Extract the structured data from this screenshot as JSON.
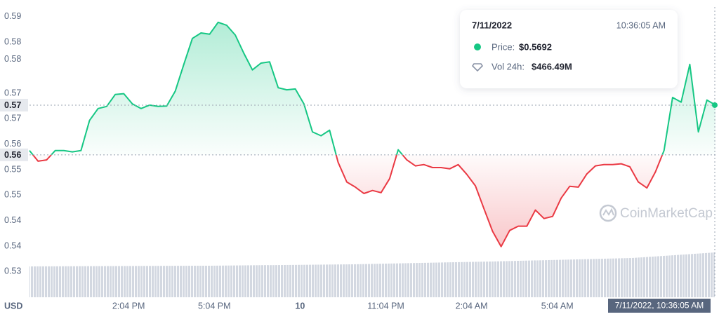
{
  "chart_data": {
    "type": "baseline-line",
    "currency": "USD",
    "watermark": "CoinMarketCap",
    "up_color": "#16c784",
    "down_color": "#ea3943",
    "grid": false,
    "xlim": [
      10.6,
      34.6
    ],
    "ylim": [
      0.5238,
      0.5923
    ],
    "xticks": [
      {
        "value": 14.0667,
        "label": "2:04 PM"
      },
      {
        "value": 17.0667,
        "label": "5:04 PM"
      },
      {
        "value": 20.0667,
        "label": "10"
      },
      {
        "value": 23.0667,
        "label": "11:04 PM"
      },
      {
        "value": 26.0667,
        "label": "2:04 AM"
      },
      {
        "value": 29.0667,
        "label": "5:04 AM"
      }
    ],
    "yticks": [
      0.59,
      {
        "value": 0.584,
        "label": "0.58"
      },
      0.58,
      {
        "value": 0.572,
        "label": "0.57"
      },
      {
        "value": 0.566,
        "label": "0.57"
      },
      0.56,
      {
        "value": 0.554,
        "label": "0.55"
      },
      {
        "value": 0.548,
        "label": "0.55"
      },
      {
        "value": 0.542,
        "label": "0.54"
      },
      {
        "value": 0.536,
        "label": "0.54"
      },
      0.53
    ],
    "baseline": {
      "value": 0.5575,
      "label": "0.56"
    },
    "last_price": {
      "value": 0.5692,
      "label": "0.57"
    },
    "crosshair_label": "7/11/2022, 10:36:05 AM",
    "x": [
      10.6,
      10.9,
      11.2,
      11.5,
      11.8,
      12.1,
      12.4,
      12.7,
      13.0,
      13.3,
      13.6,
      13.9,
      14.2,
      14.5,
      14.8,
      15.1,
      15.4,
      15.7,
      16.0,
      16.3,
      16.6,
      16.9,
      17.2,
      17.5,
      17.8,
      18.1,
      18.4,
      18.7,
      19.0,
      19.3,
      19.6,
      19.9,
      20.2,
      20.5,
      20.8,
      21.1,
      21.4,
      21.7,
      22.0,
      22.3,
      22.6,
      22.9,
      23.2,
      23.5,
      23.8,
      24.1,
      24.4,
      24.7,
      25.0,
      25.3,
      25.6,
      25.9,
      26.2,
      26.5,
      26.8,
      27.1,
      27.4,
      27.7,
      28.0,
      28.3,
      28.6,
      28.9,
      29.2,
      29.5,
      29.8,
      30.1,
      30.4,
      30.7,
      31.0,
      31.3,
      31.6,
      31.9,
      32.2,
      32.5,
      32.8,
      33.1,
      33.4,
      33.7,
      34.0,
      34.3,
      34.6
    ],
    "series": [
      {
        "name": "Price",
        "values": [
          0.5585,
          0.556,
          0.5563,
          0.5585,
          0.5585,
          0.5582,
          0.5585,
          0.5656,
          0.5684,
          0.5689,
          0.5717,
          0.5719,
          0.5695,
          0.5684,
          0.5692,
          0.5689,
          0.569,
          0.5725,
          0.5788,
          0.5849,
          0.5862,
          0.5859,
          0.5887,
          0.588,
          0.5857,
          0.5814,
          0.5775,
          0.5791,
          0.5794,
          0.5733,
          0.5728,
          0.573,
          0.5695,
          0.5629,
          0.562,
          0.5633,
          0.5557,
          0.5511,
          0.5499,
          0.5484,
          0.5491,
          0.5486,
          0.5519,
          0.5587,
          0.5563,
          0.5549,
          0.5552,
          0.5545,
          0.5545,
          0.5542,
          0.5552,
          0.5529,
          0.5502,
          0.5448,
          0.5395,
          0.5359,
          0.5397,
          0.5407,
          0.5407,
          0.5445,
          0.5425,
          0.543,
          0.5473,
          0.5501,
          0.5499,
          0.553,
          0.5549,
          0.5552,
          0.5552,
          0.5554,
          0.5547,
          0.5511,
          0.5497,
          0.5535,
          0.5585,
          0.571,
          0.5699,
          0.5788,
          0.5629,
          0.5704,
          0.5692
        ]
      }
    ],
    "tooltip": {
      "date": "7/11/2022",
      "time": "10:36:05 AM",
      "price_key": "Price:",
      "price": "$0.5692",
      "volume_key": "Vol 24h:",
      "volume": "$466.49M"
    }
  }
}
